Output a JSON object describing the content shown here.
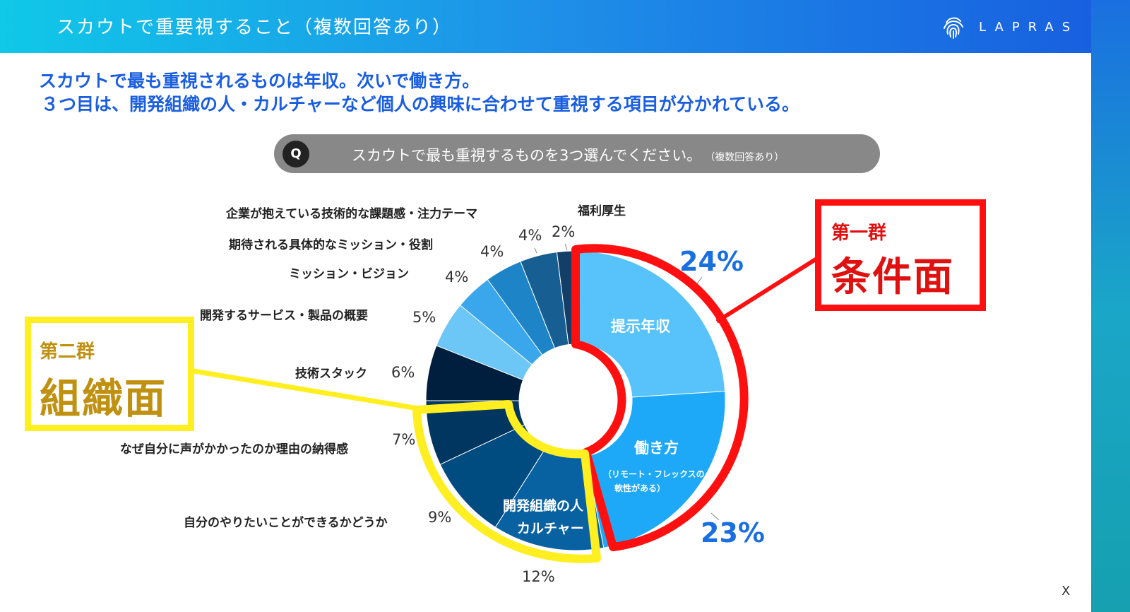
{
  "header": {
    "title": "スカウトで重要視すること（複数回答あり）",
    "logo_text": "LAPRAS"
  },
  "headline": {
    "line1": "スカウトで最も重視されるものは年収。次いで働き方。",
    "line2": "３つ目は、開発組織の人・カルチャーなど個人の興味に合わせて重視する項目が分かれている。"
  },
  "question": {
    "badge": "Q",
    "text": "スカウトで最も重視するものを3つ選んでください。",
    "note": "（複数回答あり）"
  },
  "groups": {
    "first": {
      "small": "第一群",
      "big": "条件面",
      "color": "#ff1010"
    },
    "second": {
      "small": "第二群",
      "big": "組織面",
      "color": "#ffee20"
    }
  },
  "chart_data": {
    "type": "pie",
    "donut": true,
    "categories": [
      "提示年収",
      "働き方（リモート・フレックスの柔軟性がある）",
      "開発組織の人・カルチャー",
      "自分のやりたいことができるかどうか",
      "なぜ自分に声がかかったのか理由の納得感",
      "技術スタック",
      "開発するサービス・製品の概要",
      "ミッション・ビジョン",
      "期待される具体的なミッション・役割",
      "企業が抱えている技術的な課題感・注力テーマ",
      "福利厚生"
    ],
    "values": [
      24,
      23,
      12,
      9,
      7,
      6,
      5,
      4,
      4,
      4,
      2
    ],
    "value_labels": [
      "24%",
      "23%",
      "12%",
      "9%",
      "7%",
      "6%",
      "5%",
      "4%",
      "4%",
      "4%",
      "2%"
    ],
    "outer_labels": [
      "",
      "",
      "",
      "自分のやりたいことができるかどうか",
      "なぜ自分に声がかかったのか理由の納得感",
      "技術スタック",
      "開発するサービス・製品の概要",
      "ミッション・ビジョン",
      "期待される具体的なミッション・役割",
      "企業が抱えている技術的な課題感・注力テーマ",
      "福利厚生"
    ],
    "inner_labels": {
      "nenshu": "提示年収",
      "hatarakikata": "働き方",
      "hatarakikata_sub1": "（リモート・フレックスの",
      "hatarakikata_sub2": "軟性がある）",
      "soshiki1": "開発組織の人",
      "soshiki2": "カルチャー"
    },
    "colors": [
      "#58c2fb",
      "#1ea8f8",
      "#0862a2",
      "#004b80",
      "#00365f",
      "#001f3f",
      "#6cc6f6",
      "#3aa6ec",
      "#1e84c8",
      "#175e92",
      "#123e68"
    ]
  },
  "close_label": "X"
}
